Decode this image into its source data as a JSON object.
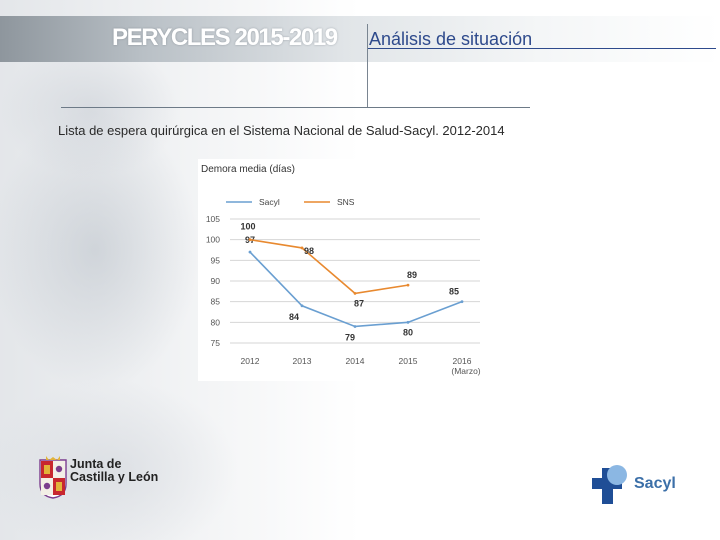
{
  "header": {
    "brand": "PERYCLES 2015-2019",
    "section_title": "Análisis de situación"
  },
  "subtitle": "Lista de espera quirúrgica en el Sistema Nacional de Salud-Sacyl. 2012-2014",
  "chart_data": {
    "type": "line",
    "title": "Demora media (días)",
    "categories": [
      "2012",
      "2013",
      "2014",
      "2015",
      "2016\n(Marzo)"
    ],
    "category_labels": [
      "2012",
      "2013",
      "2014",
      "2015",
      "2016"
    ],
    "category_sublabels": [
      "",
      "",
      "",
      "",
      "(Marzo)"
    ],
    "series": [
      {
        "name": "Sacyl",
        "color": "#6a9fd1",
        "values": [
          97,
          84,
          79,
          80,
          85
        ],
        "labels": [
          "97",
          "84",
          "79",
          "80",
          "85"
        ]
      },
      {
        "name": "SNS",
        "color": "#e8892f",
        "values": [
          100,
          98,
          87,
          89,
          null
        ],
        "labels": [
          "100",
          "98",
          "87",
          "89",
          ""
        ]
      }
    ],
    "yticks": [
      "105",
      "100",
      "95",
      "90",
      "85",
      "80",
      "75"
    ],
    "ylim": [
      75,
      105
    ],
    "grid": true,
    "legend": "top"
  },
  "logos": {
    "jcyl_line1": "Junta de",
    "jcyl_line2": "Castilla y León",
    "sacyl": "Sacyl",
    "jcyl_colors": {
      "red": "#c8272e",
      "gold": "#e2b33a",
      "purple": "#7b3d8d"
    },
    "sacyl_colors": {
      "dark": "#1f4e96",
      "light": "#8bb7e3"
    }
  }
}
